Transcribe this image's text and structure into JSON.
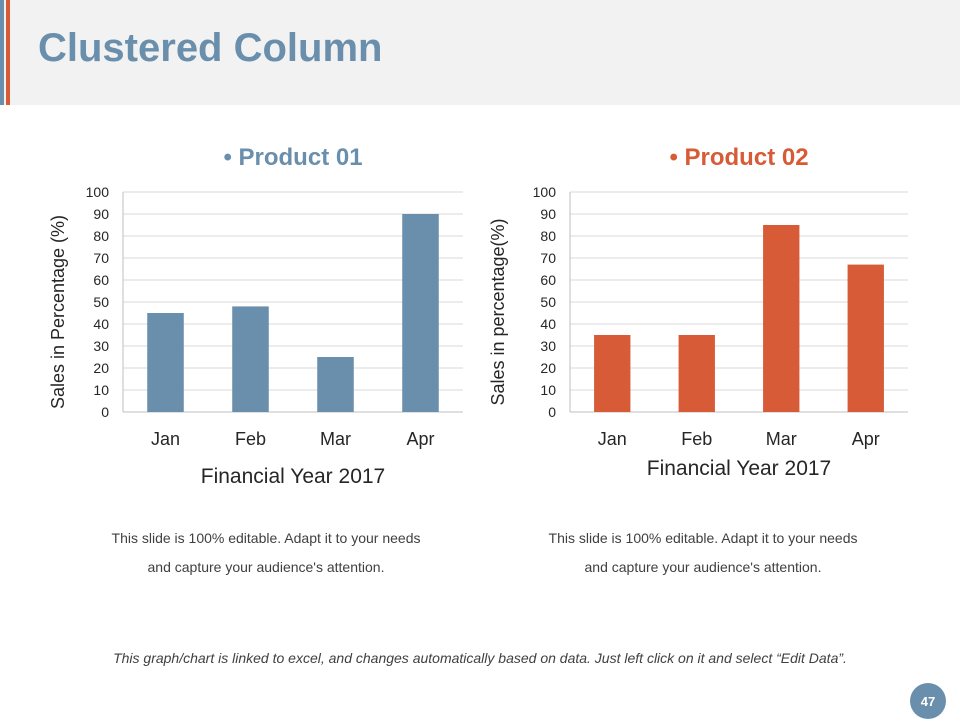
{
  "slide": {
    "title": "Clustered Column",
    "page_number": "47",
    "footer_note": "This graph/chart is linked to excel, and changes automatically based on data. Just left click on it and select “Edit Data”.",
    "captions": [
      "This slide is 100% editable. Adapt it to your needs and capture your audience's attention.",
      "This slide is 100% editable. Adapt it to your needs and capture your audience's attention."
    ]
  },
  "colors": {
    "blue": "#6a8fac",
    "red": "#d65b36",
    "gray_bg": "#f2f2f2",
    "text": "#404040"
  },
  "chart_data": [
    {
      "type": "bar",
      "title": "Product 01",
      "title_bullet": "•",
      "categories": [
        "Jan",
        "Feb",
        "Mar",
        "Apr"
      ],
      "series": [
        {
          "values": [
            45,
            48,
            25,
            90
          ]
        }
      ],
      "xlabel": "Financial Year 2017",
      "ylabel": "Sales in Percentage (%)",
      "ylim": [
        0,
        100
      ],
      "yticks": [
        0,
        10,
        20,
        30,
        40,
        50,
        60,
        70,
        80,
        90,
        100
      ],
      "grid": true,
      "color": "#6a8fac"
    },
    {
      "type": "bar",
      "title": "Product 02",
      "title_bullet": "•",
      "categories": [
        "Jan",
        "Feb",
        "Mar",
        "Apr"
      ],
      "series": [
        {
          "values": [
            35,
            35,
            85,
            67
          ]
        }
      ],
      "xlabel": "Financial Year 2017",
      "ylabel": "Sales in percentage(%)",
      "ylim": [
        0,
        100
      ],
      "yticks": [
        0,
        10,
        20,
        30,
        40,
        50,
        60,
        70,
        80,
        90,
        100
      ],
      "grid": true,
      "color": "#d65b36"
    }
  ]
}
